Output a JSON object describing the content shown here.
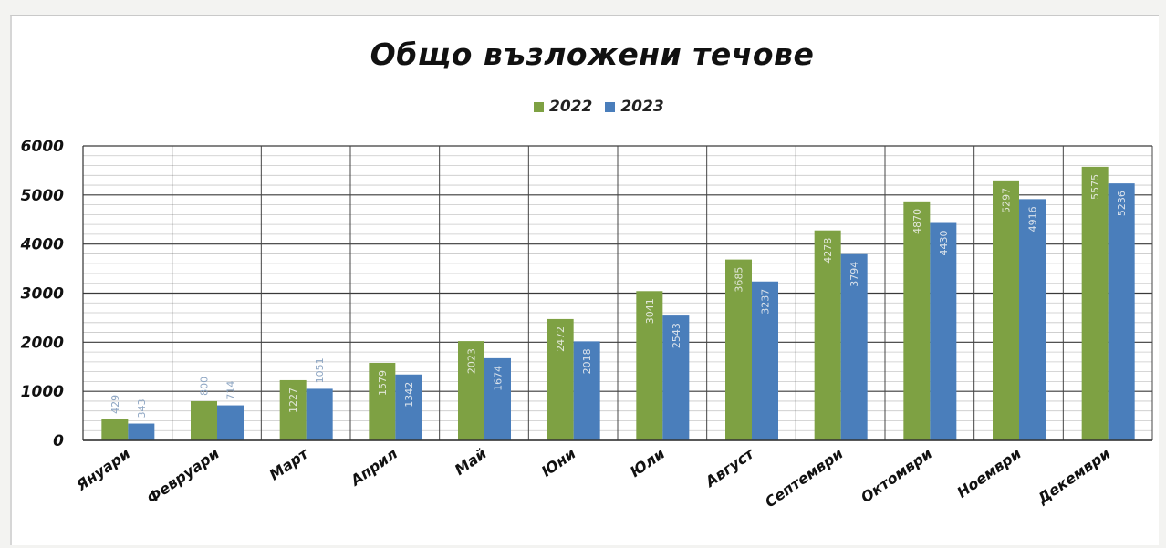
{
  "chart_data": {
    "type": "bar",
    "title": "Общо възложени течове",
    "categories": [
      "Януари",
      "Февруари",
      "Март",
      "Април",
      "Май",
      "Юни",
      "Юли",
      "Август",
      "Септември",
      "Октомври",
      "Ноември",
      "Декември"
    ],
    "series": [
      {
        "name": "2022",
        "color": "#7ea143",
        "values": [
          429,
          800,
          1227,
          1579,
          2023,
          2472,
          3041,
          3685,
          4278,
          4870,
          5297,
          5575
        ]
      },
      {
        "name": "2023",
        "color": "#4a7ebb",
        "values": [
          343,
          714,
          1051,
          1342,
          1674,
          2018,
          2543,
          3237,
          3794,
          4430,
          4916,
          5236
        ]
      }
    ],
    "ylim": [
      0,
      6000
    ],
    "yticks": [
      0,
      1000,
      2000,
      3000,
      4000,
      5000,
      6000
    ],
    "xlabel": "",
    "ylabel": "",
    "grid": true,
    "legend": "top-center",
    "data_labels": true
  }
}
